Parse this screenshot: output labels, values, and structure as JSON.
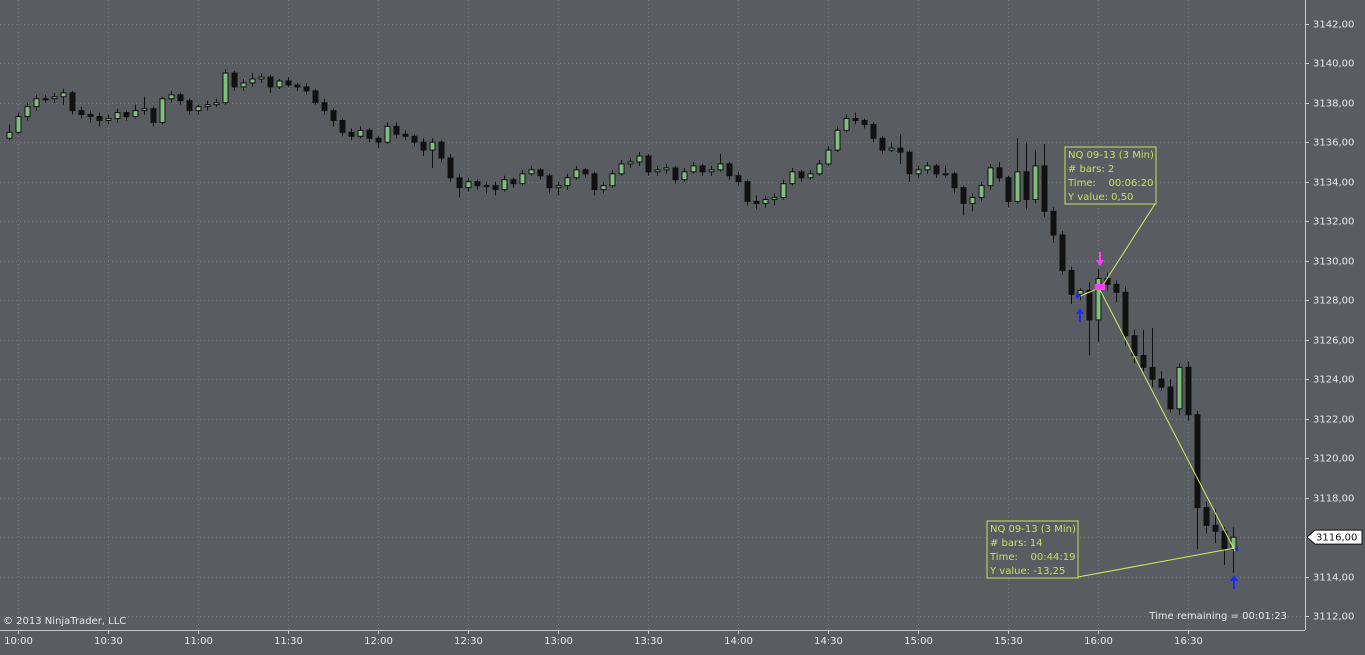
{
  "chart_data": {
    "type": "candlestick",
    "categories": [
      null,
      "10:00",
      null,
      null,
      null,
      null,
      null,
      null,
      null,
      null,
      null,
      "10:30",
      null,
      null,
      null,
      null,
      null,
      null,
      null,
      null,
      null,
      "11:00",
      null,
      null,
      null,
      null,
      null,
      null,
      null,
      null,
      null,
      "11:30",
      null,
      null,
      null,
      null,
      null,
      null,
      null,
      null,
      null,
      "12:00",
      null,
      null,
      null,
      null,
      null,
      null,
      null,
      null,
      null,
      "12:30",
      null,
      null,
      null,
      null,
      null,
      null,
      null,
      null,
      null,
      "13:00",
      null,
      null,
      null,
      null,
      null,
      null,
      null,
      null,
      null,
      "13:30",
      null,
      null,
      null,
      null,
      null,
      null,
      null,
      null,
      null,
      "14:00",
      null,
      null,
      null,
      null,
      null,
      null,
      null,
      null,
      null,
      "14:30",
      null,
      null,
      null,
      null,
      null,
      null,
      null,
      null,
      null,
      "15:00",
      null,
      null,
      null,
      null,
      null,
      null,
      null,
      null,
      null,
      "15:30",
      null,
      null,
      null,
      null,
      null,
      null,
      null,
      null,
      null,
      "16:00",
      null,
      null,
      null,
      null,
      null,
      null,
      null,
      null,
      null,
      "16:30",
      null,
      null,
      null,
      null,
      null
    ],
    "ohlc": [
      [
        3136.2,
        3136.9,
        3136.1,
        3136.5
      ],
      [
        3136.5,
        3137.5,
        3136.4,
        3137.3
      ],
      [
        3137.3,
        3138.0,
        3137.1,
        3137.8
      ],
      [
        3137.8,
        3138.4,
        3137.6,
        3138.2
      ],
      [
        3138.2,
        3138.4,
        3138.0,
        3138.2
      ],
      [
        3138.2,
        3138.5,
        3138.0,
        3138.3
      ],
      [
        3138.3,
        3138.7,
        3137.9,
        3138.5
      ],
      [
        3138.5,
        3138.6,
        3137.4,
        3137.6
      ],
      [
        3137.6,
        3137.8,
        3137.2,
        3137.4
      ],
      [
        3137.4,
        3137.6,
        3137.0,
        3137.3
      ],
      [
        3137.3,
        3137.5,
        3136.8,
        3137.1
      ],
      [
        3137.1,
        3137.4,
        3136.9,
        3137.2
      ],
      [
        3137.2,
        3137.7,
        3137.0,
        3137.5
      ],
      [
        3137.5,
        3137.6,
        3137.1,
        3137.3
      ],
      [
        3137.3,
        3137.9,
        3137.2,
        3137.6
      ],
      [
        3137.6,
        3138.3,
        3137.4,
        3137.7
      ],
      [
        3137.7,
        3137.8,
        3136.8,
        3137.0
      ],
      [
        3137.0,
        3138.3,
        3136.9,
        3138.2
      ],
      [
        3138.2,
        3138.6,
        3138.0,
        3138.4
      ],
      [
        3138.4,
        3138.5,
        3137.9,
        3138.1
      ],
      [
        3138.1,
        3138.2,
        3137.4,
        3137.6
      ],
      [
        3137.6,
        3137.9,
        3137.4,
        3137.8
      ],
      [
        3137.8,
        3138.1,
        3137.6,
        3137.9
      ],
      [
        3137.9,
        3138.2,
        3137.8,
        3138.0
      ],
      [
        3138.0,
        3139.7,
        3137.9,
        3139.5
      ],
      [
        3139.5,
        3139.6,
        3138.6,
        3138.8
      ],
      [
        3138.8,
        3139.2,
        3138.6,
        3139.0
      ],
      [
        3139.0,
        3139.5,
        3138.8,
        3139.2
      ],
      [
        3139.2,
        3139.5,
        3139.0,
        3139.3
      ],
      [
        3139.3,
        3139.4,
        3138.5,
        3138.8
      ],
      [
        3138.8,
        3139.2,
        3138.7,
        3139.1
      ],
      [
        3139.1,
        3139.3,
        3138.8,
        3138.9
      ],
      [
        3138.9,
        3139.0,
        3138.6,
        3138.8
      ],
      [
        3138.8,
        3139.0,
        3138.4,
        3138.6
      ],
      [
        3138.6,
        3138.7,
        3137.9,
        3138.0
      ],
      [
        3138.0,
        3138.2,
        3137.4,
        3137.6
      ],
      [
        3137.6,
        3137.7,
        3136.8,
        3137.1
      ],
      [
        3137.1,
        3137.2,
        3136.3,
        3136.5
      ],
      [
        3136.5,
        3136.7,
        3136.1,
        3136.3
      ],
      [
        3136.3,
        3136.8,
        3136.2,
        3136.6
      ],
      [
        3136.6,
        3136.7,
        3136.0,
        3136.2
      ],
      [
        3136.2,
        3136.3,
        3135.7,
        3136.0
      ],
      [
        3136.0,
        3137.0,
        3135.9,
        3136.8
      ],
      [
        3136.8,
        3137.0,
        3136.2,
        3136.4
      ],
      [
        3136.4,
        3136.6,
        3136.1,
        3136.3
      ],
      [
        3136.3,
        3136.4,
        3135.8,
        3136.0
      ],
      [
        3136.0,
        3136.2,
        3135.3,
        3135.6
      ],
      [
        3135.6,
        3136.2,
        3134.7,
        3136.0
      ],
      [
        3136.0,
        3136.1,
        3135.0,
        3135.2
      ],
      [
        3135.2,
        3135.4,
        3134.0,
        3134.2
      ],
      [
        3134.2,
        3134.4,
        3133.2,
        3133.7
      ],
      [
        3133.7,
        3134.2,
        3133.5,
        3134.0
      ],
      [
        3134.0,
        3134.1,
        3133.6,
        3133.8
      ],
      [
        3133.8,
        3134.0,
        3133.4,
        3133.8
      ],
      [
        3133.8,
        3134.0,
        3133.3,
        3133.6
      ],
      [
        3133.6,
        3134.3,
        3133.5,
        3134.1
      ],
      [
        3134.1,
        3134.2,
        3133.7,
        3133.9
      ],
      [
        3133.9,
        3134.6,
        3133.8,
        3134.4
      ],
      [
        3134.4,
        3134.8,
        3134.3,
        3134.6
      ],
      [
        3134.6,
        3134.7,
        3134.1,
        3134.3
      ],
      [
        3134.3,
        3134.4,
        3133.4,
        3133.7
      ],
      [
        3133.7,
        3134.0,
        3133.3,
        3133.8
      ],
      [
        3133.8,
        3134.4,
        3133.6,
        3134.2
      ],
      [
        3134.2,
        3134.8,
        3134.1,
        3134.6
      ],
      [
        3134.6,
        3134.7,
        3134.2,
        3134.4
      ],
      [
        3134.4,
        3134.5,
        3133.3,
        3133.6
      ],
      [
        3133.6,
        3134.0,
        3133.4,
        3133.8
      ],
      [
        3133.8,
        3134.6,
        3133.7,
        3134.4
      ],
      [
        3134.4,
        3135.1,
        3134.3,
        3134.9
      ],
      [
        3134.9,
        3135.2,
        3134.7,
        3135.0
      ],
      [
        3135.0,
        3135.5,
        3134.8,
        3135.3
      ],
      [
        3135.3,
        3135.4,
        3134.3,
        3134.5
      ],
      [
        3134.5,
        3134.8,
        3134.3,
        3134.6
      ],
      [
        3134.6,
        3134.9,
        3134.4,
        3134.7
      ],
      [
        3134.7,
        3134.8,
        3133.9,
        3134.1
      ],
      [
        3134.1,
        3134.7,
        3134.0,
        3134.5
      ],
      [
        3134.5,
        3135.0,
        3134.4,
        3134.8
      ],
      [
        3134.8,
        3134.9,
        3134.3,
        3134.5
      ],
      [
        3134.5,
        3134.8,
        3134.3,
        3134.6
      ],
      [
        3134.6,
        3135.4,
        3134.5,
        3134.9
      ],
      [
        3134.9,
        3135.0,
        3134.1,
        3134.3
      ],
      [
        3134.3,
        3134.5,
        3133.8,
        3134.0
      ],
      [
        3134.0,
        3134.1,
        3132.8,
        3133.0
      ],
      [
        3133.0,
        3133.3,
        3132.6,
        3132.9
      ],
      [
        3132.9,
        3133.3,
        3132.7,
        3133.1
      ],
      [
        3133.1,
        3133.4,
        3132.8,
        3133.2
      ],
      [
        3133.2,
        3134.1,
        3133.1,
        3133.9
      ],
      [
        3133.9,
        3134.7,
        3133.8,
        3134.5
      ],
      [
        3134.5,
        3134.6,
        3134.0,
        3134.2
      ],
      [
        3134.2,
        3134.6,
        3134.1,
        3134.4
      ],
      [
        3134.4,
        3135.1,
        3134.3,
        3134.9
      ],
      [
        3134.9,
        3135.8,
        3134.8,
        3135.6
      ],
      [
        3135.6,
        3136.8,
        3135.5,
        3136.6
      ],
      [
        3136.6,
        3137.4,
        3136.5,
        3137.2
      ],
      [
        3137.2,
        3137.5,
        3136.9,
        3137.1
      ],
      [
        3137.1,
        3137.2,
        3136.7,
        3136.9
      ],
      [
        3136.9,
        3137.0,
        3136.0,
        3136.2
      ],
      [
        3136.2,
        3136.3,
        3135.4,
        3135.6
      ],
      [
        3135.6,
        3136.0,
        3135.5,
        3135.7
      ],
      [
        3135.7,
        3136.4,
        3134.9,
        3135.5
      ],
      [
        3135.5,
        3135.6,
        3134.0,
        3134.4
      ],
      [
        3134.4,
        3134.8,
        3134.2,
        3134.6
      ],
      [
        3134.6,
        3135.0,
        3134.4,
        3134.8
      ],
      [
        3134.8,
        3134.9,
        3134.2,
        3134.4
      ],
      [
        3134.4,
        3134.8,
        3134.2,
        3134.4
      ],
      [
        3134.4,
        3134.5,
        3133.4,
        3133.7
      ],
      [
        3133.7,
        3133.8,
        3132.3,
        3132.9
      ],
      [
        3132.9,
        3133.4,
        3132.5,
        3133.2
      ],
      [
        3133.2,
        3134.0,
        3133.0,
        3133.8
      ],
      [
        3133.8,
        3134.9,
        3133.6,
        3134.7
      ],
      [
        3134.7,
        3135.0,
        3134.0,
        3134.2
      ],
      [
        3134.2,
        3134.3,
        3132.7,
        3133.0
      ],
      [
        3133.0,
        3136.2,
        3132.9,
        3134.5
      ],
      [
        3134.5,
        3136.0,
        3132.6,
        3133.1
      ],
      [
        3133.1,
        3135.6,
        3132.9,
        3134.8
      ],
      [
        3134.8,
        3135.9,
        3132.2,
        3132.5
      ],
      [
        3132.5,
        3132.7,
        3130.9,
        3131.3
      ],
      [
        3131.3,
        3131.5,
        3129.3,
        3129.5
      ],
      [
        3129.5,
        3129.7,
        3127.8,
        3128.3
      ],
      [
        3128.3,
        3128.6,
        3128.0,
        3128.5
      ],
      [
        3128.5,
        3128.9,
        3125.2,
        3127.0
      ],
      [
        3127.0,
        3129.6,
        3125.9,
        3129.1
      ],
      [
        3129.1,
        3129.4,
        3128.5,
        3128.8
      ],
      [
        3128.8,
        3129.0,
        3127.9,
        3128.4
      ],
      [
        3128.4,
        3128.7,
        3125.7,
        3126.2
      ],
      [
        3126.2,
        3126.5,
        3124.8,
        3125.2
      ],
      [
        3125.2,
        3126.5,
        3124.4,
        3124.6
      ],
      [
        3124.6,
        3126.6,
        3123.6,
        3124.0
      ],
      [
        3124.0,
        3124.4,
        3123.4,
        3123.6
      ],
      [
        3123.6,
        3124.0,
        3122.3,
        3122.5
      ],
      [
        3122.5,
        3124.8,
        3122.2,
        3124.6
      ],
      [
        3124.6,
        3124.9,
        3121.9,
        3122.2
      ],
      [
        3122.2,
        3122.4,
        3115.4,
        3117.5
      ],
      [
        3117.5,
        3117.8,
        3116.2,
        3116.6
      ],
      [
        3116.6,
        3117.4,
        3115.7,
        3116.3
      ],
      [
        3116.3,
        3116.5,
        3114.6,
        3115.4
      ],
      [
        3115.4,
        3116.5,
        3114.2,
        3116.0
      ]
    ],
    "up_color": "#7fc07f",
    "down_color": "#111111",
    "ylim": [
      3111.3,
      3143.2
    ],
    "yticks": [
      {
        "value": 3112,
        "label": "3112,00"
      },
      {
        "value": 3114,
        "label": "3114,00"
      },
      {
        "value": 3116,
        "label": "3116,00"
      },
      {
        "value": 3118,
        "label": "3118,00"
      },
      {
        "value": 3120,
        "label": "3120,00"
      },
      {
        "value": 3122,
        "label": "3122,00"
      },
      {
        "value": 3124,
        "label": "3124,00"
      },
      {
        "value": 3126,
        "label": "3126,00"
      },
      {
        "value": 3128,
        "label": "3128,00"
      },
      {
        "value": 3130,
        "label": "3130,00"
      },
      {
        "value": 3132,
        "label": "3132,00"
      },
      {
        "value": 3134,
        "label": "3134,00"
      },
      {
        "value": 3136,
        "label": "3136,00"
      },
      {
        "value": 3138,
        "label": "3138,00"
      },
      {
        "value": 3140,
        "label": "3140,00"
      },
      {
        "value": 3142,
        "label": "3142,00"
      }
    ],
    "grid": true,
    "last_price": {
      "value": 3116,
      "label": "3116,00"
    },
    "copyright": "© 2013 NinjaTrader, LLC",
    "time_remaining": "Time remaining = 00:01:23",
    "annotations": [
      {
        "lines": [
          "NQ 09-13 (3 Min)",
          "# bars: 2",
          "Time:    00:06:20",
          "Y value: 0,50"
        ]
      },
      {
        "lines": [
          "NQ 09-13 (3 Min)",
          "# bars: 14",
          "Time:    00:44:19",
          "Y value: -13,25"
        ]
      }
    ]
  }
}
